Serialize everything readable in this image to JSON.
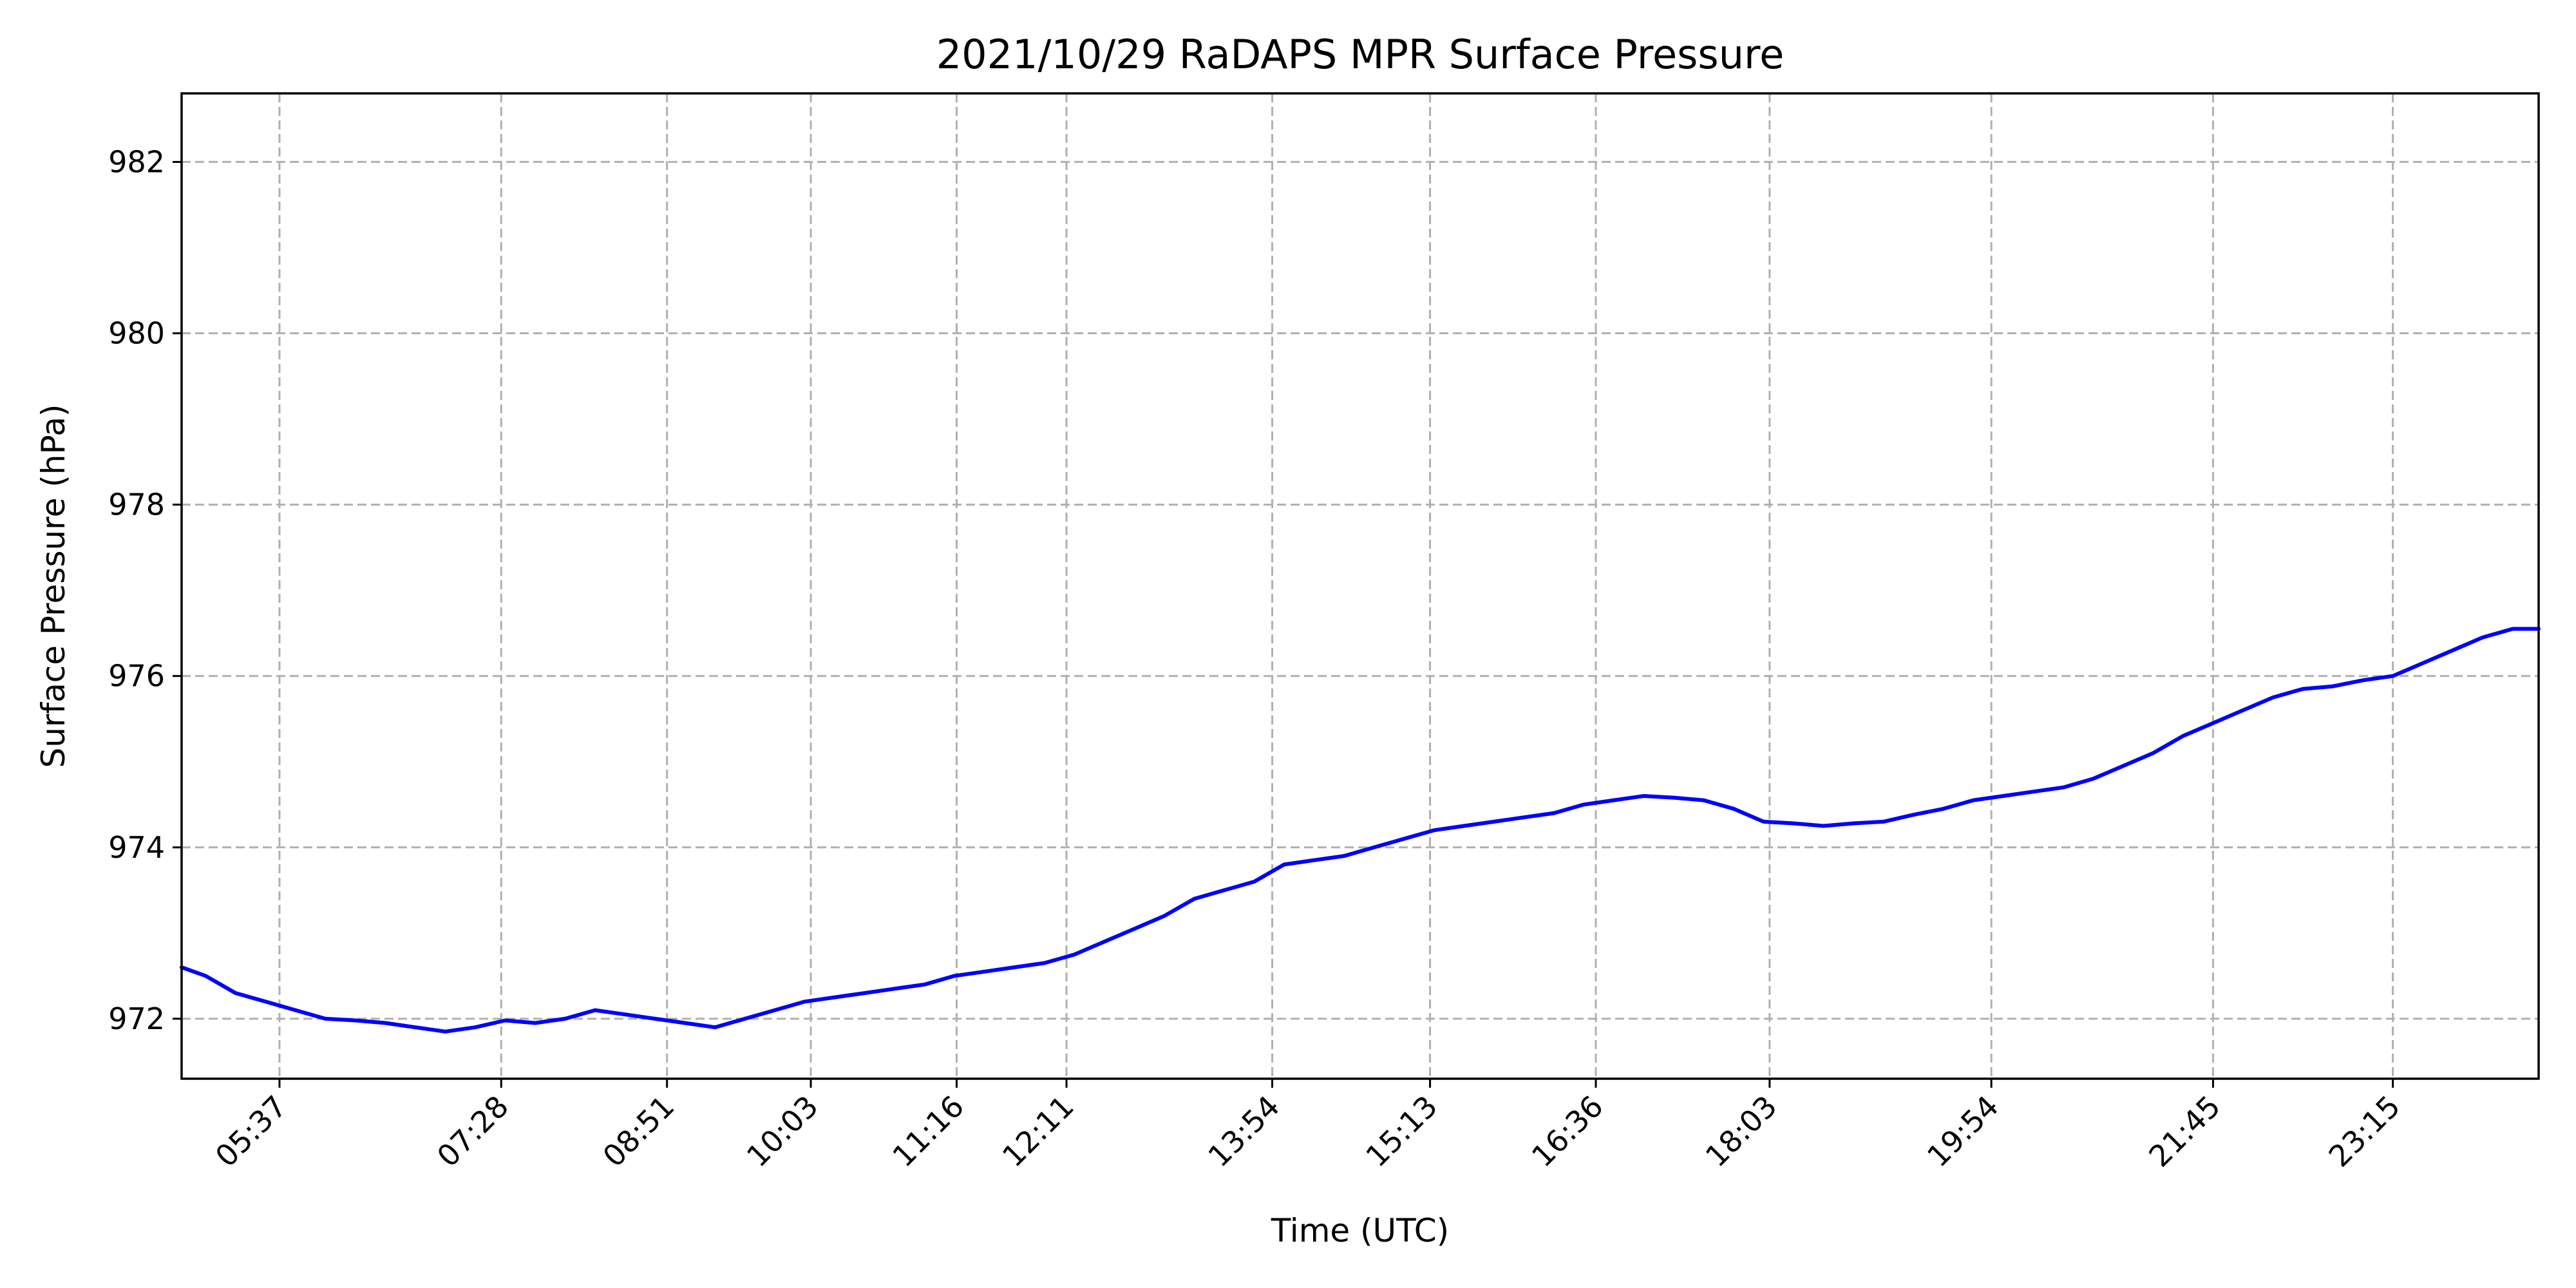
{
  "chart_data": {
    "type": "line",
    "title": "2021/10/29 RaDAPS MPR Surface Pressure",
    "xlabel": "Time (UTC)",
    "ylabel": "Surface Pressure (hPa)",
    "xlim": [
      "04:48",
      "24:28"
    ],
    "ylim": [
      971.3,
      982.8
    ],
    "grid": true,
    "x_ticks": [
      "05:37",
      "07:28",
      "08:51",
      "10:03",
      "11:16",
      "12:11",
      "13:54",
      "15:13",
      "16:36",
      "18:03",
      "19:54",
      "21:45",
      "23:15"
    ],
    "y_ticks": [
      972,
      974,
      976,
      978,
      980,
      982
    ],
    "series": [
      {
        "color": "#0000ff",
        "x": [
          "04:48",
          "05:00",
          "05:15",
          "05:30",
          "05:45",
          "06:00",
          "06:15",
          "06:30",
          "06:45",
          "07:00",
          "07:15",
          "07:30",
          "07:45",
          "08:00",
          "08:15",
          "08:30",
          "08:45",
          "09:00",
          "09:15",
          "09:30",
          "09:45",
          "10:00",
          "10:15",
          "10:30",
          "10:45",
          "11:00",
          "11:15",
          "11:30",
          "11:45",
          "12:00",
          "12:15",
          "12:30",
          "12:45",
          "13:00",
          "13:15",
          "13:30",
          "13:45",
          "14:00",
          "14:15",
          "14:30",
          "14:45",
          "15:00",
          "15:15",
          "15:30",
          "15:45",
          "16:00",
          "16:15",
          "16:30",
          "16:45",
          "17:00",
          "17:15",
          "17:30",
          "17:45",
          "18:00",
          "18:15",
          "18:30",
          "18:45",
          "19:00",
          "19:15",
          "19:30",
          "19:45",
          "20:00",
          "20:15",
          "20:30",
          "20:45",
          "21:00",
          "21:15",
          "21:30",
          "21:45",
          "22:00",
          "22:15",
          "22:30",
          "22:45",
          "23:00",
          "23:15",
          "23:30",
          "23:45",
          "24:00",
          "24:15",
          "24:28"
        ],
        "values": [
          972.6,
          972.5,
          972.3,
          972.2,
          972.1,
          972.0,
          971.98,
          971.95,
          971.9,
          971.85,
          971.9,
          971.98,
          971.95,
          972.0,
          972.1,
          972.05,
          972.0,
          971.95,
          971.9,
          972.0,
          972.1,
          972.2,
          972.25,
          972.3,
          972.35,
          972.4,
          972.5,
          972.55,
          972.6,
          972.65,
          972.75,
          972.9,
          973.05,
          973.2,
          973.4,
          973.5,
          973.6,
          973.8,
          973.85,
          973.9,
          974.0,
          974.1,
          974.2,
          974.25,
          974.3,
          974.35,
          974.4,
          974.5,
          974.55,
          974.6,
          974.58,
          974.55,
          974.45,
          974.3,
          974.28,
          974.25,
          974.28,
          974.3,
          974.38,
          974.45,
          974.55,
          974.6,
          974.65,
          974.7,
          974.8,
          974.95,
          975.1,
          975.3,
          975.45,
          975.6,
          975.75,
          975.85,
          975.88,
          975.95,
          976.0,
          976.15,
          976.3,
          976.45,
          976.55,
          976.55
        ]
      }
    ]
  }
}
